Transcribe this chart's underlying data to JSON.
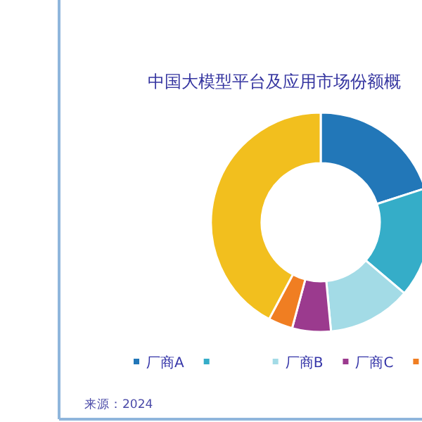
{
  "chart_data": {
    "type": "donut",
    "title": "中国大模型平台及应用市场份额概",
    "categories": [
      "厂商A",
      null,
      "厂商B",
      "厂商C",
      null,
      null
    ],
    "values": [
      20,
      16.2,
      12.3,
      5.7,
      3.6,
      42.2
    ],
    "colors": [
      "#2277b8",
      "#35adc8",
      "#a3dbe6",
      "#9b3a8e",
      "#f07e22",
      "#f2bf1e"
    ],
    "legend": "bottom",
    "annotations": [
      "来源：2024"
    ]
  }
}
